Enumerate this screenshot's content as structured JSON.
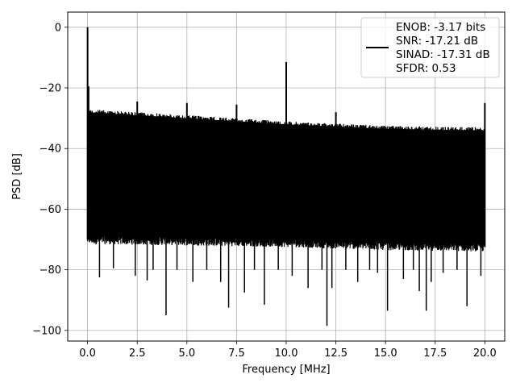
{
  "chart_data": {
    "type": "line",
    "title": "",
    "xlabel": "Frequency [MHz]",
    "ylabel": "PSD [dB]",
    "xlim": [
      -1.0,
      21.0
    ],
    "ylim": [
      -103.5,
      5.0
    ],
    "xticks": [
      0.0,
      2.5,
      5.0,
      7.5,
      10.0,
      12.5,
      15.0,
      17.5,
      20.0
    ],
    "xtick_labels": [
      "0.0",
      "2.5",
      "5.0",
      "7.5",
      "10.0",
      "12.5",
      "15.0",
      "17.5",
      "20.0"
    ],
    "yticks": [
      0,
      -20,
      -40,
      -60,
      -80,
      -100
    ],
    "ytick_labels": [
      "0",
      "−20",
      "−40",
      "−60",
      "−80",
      "−100"
    ],
    "grid": true,
    "legend": {
      "placement": "top-right",
      "entries": [
        "ENOB: -3.17 bits",
        "SNR: -17.21 dB",
        "SINAD: -17.31 dB",
        "SFDR: 0.53"
      ]
    },
    "series": [
      {
        "color": "#000000",
        "noise_envelope": {
          "x": [
            0.0,
            5.0,
            10.0,
            15.0,
            20.0
          ],
          "upper": [
            -27,
            -29,
            -31,
            -32.5,
            -33
          ],
          "lower": [
            -70,
            -70.5,
            -71,
            -72,
            -72.5
          ]
        },
        "peaks": [
          {
            "x": 0.0,
            "y": 0.0
          },
          {
            "x": 0.05,
            "y": -19.5
          },
          {
            "x": 2.5,
            "y": -24.5
          },
          {
            "x": 5.0,
            "y": -25.0
          },
          {
            "x": 7.5,
            "y": -25.5
          },
          {
            "x": 10.0,
            "y": -11.5
          },
          {
            "x": 12.5,
            "y": -28.0
          },
          {
            "x": 20.0,
            "y": -25.0
          }
        ],
        "dips": [
          {
            "x": 0.6,
            "y": -82.5
          },
          {
            "x": 1.3,
            "y": -79.5
          },
          {
            "x": 2.4,
            "y": -82
          },
          {
            "x": 3.0,
            "y": -83.5
          },
          {
            "x": 3.3,
            "y": -80
          },
          {
            "x": 3.95,
            "y": -95
          },
          {
            "x": 4.5,
            "y": -80
          },
          {
            "x": 5.3,
            "y": -84
          },
          {
            "x": 6.0,
            "y": -80
          },
          {
            "x": 6.7,
            "y": -84
          },
          {
            "x": 7.1,
            "y": -92.5
          },
          {
            "x": 7.9,
            "y": -87.5
          },
          {
            "x": 8.4,
            "y": -80
          },
          {
            "x": 8.9,
            "y": -91.5
          },
          {
            "x": 9.6,
            "y": -80
          },
          {
            "x": 10.3,
            "y": -82
          },
          {
            "x": 11.1,
            "y": -86
          },
          {
            "x": 11.8,
            "y": -80
          },
          {
            "x": 12.05,
            "y": -98.5
          },
          {
            "x": 12.3,
            "y": -86
          },
          {
            "x": 13.0,
            "y": -80
          },
          {
            "x": 13.6,
            "y": -84
          },
          {
            "x": 14.2,
            "y": -80
          },
          {
            "x": 14.6,
            "y": -81
          },
          {
            "x": 15.1,
            "y": -93.5
          },
          {
            "x": 15.9,
            "y": -83
          },
          {
            "x": 16.4,
            "y": -80
          },
          {
            "x": 16.7,
            "y": -87
          },
          {
            "x": 17.05,
            "y": -93.5
          },
          {
            "x": 17.3,
            "y": -84
          },
          {
            "x": 17.9,
            "y": -81
          },
          {
            "x": 18.6,
            "y": -80
          },
          {
            "x": 19.1,
            "y": -92
          },
          {
            "x": 19.8,
            "y": -82
          }
        ]
      }
    ]
  }
}
